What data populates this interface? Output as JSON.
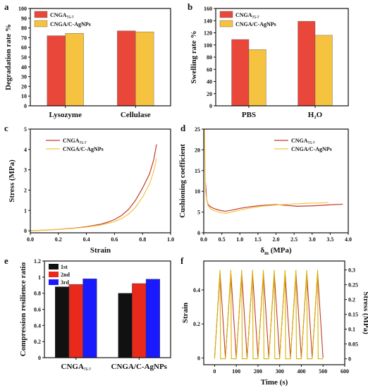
{
  "colors": {
    "red": "#e8473a",
    "yellow": "#f6c340",
    "black": "#111111",
    "blue": "#1a1aff",
    "gold": "#d8b400",
    "maroon": "#c0392b"
  },
  "chart_data": [
    {
      "id": "a",
      "panel_label": "a",
      "type": "bar",
      "ylabel": "Degradation rate %",
      "ylim": [
        0,
        100
      ],
      "yticks": [
        0,
        10,
        20,
        30,
        40,
        50,
        60,
        70,
        80,
        90,
        100
      ],
      "categories": [
        "Lysozyme",
        "Cellulase"
      ],
      "series": [
        {
          "name": "CNGA",
          "sub": "75-7",
          "color": "#e8473a",
          "values": [
            72,
            77
          ]
        },
        {
          "name": "CNGA/C-AgNPs",
          "sub": "",
          "color": "#f6c340",
          "values": [
            74.5,
            76
          ]
        }
      ],
      "legend": "top-left"
    },
    {
      "id": "b",
      "panel_label": "b",
      "type": "bar",
      "ylabel": "Swelling rate %",
      "ylim": [
        0,
        160
      ],
      "yticks": [
        0,
        20,
        40,
        60,
        80,
        100,
        120,
        140,
        160
      ],
      "categories": [
        "PBS",
        "H₂O"
      ],
      "series": [
        {
          "name": "CNGA",
          "sub": "75-7",
          "color": "#e8473a",
          "values": [
            109,
            139
          ]
        },
        {
          "name": "CNGA/C-AgNPs",
          "sub": "",
          "color": "#f6c340",
          "values": [
            92.5,
            116
          ]
        }
      ],
      "legend": "top-left"
    },
    {
      "id": "c",
      "panel_label": "c",
      "type": "line",
      "xlabel": "Strain",
      "ylabel": "Stress (MPa)",
      "xlim": [
        0,
        1.0
      ],
      "ylim": [
        -0.1,
        5
      ],
      "xticks": [
        0.0,
        0.2,
        0.4,
        0.6,
        0.8,
        1.0
      ],
      "yticks": [
        0,
        1,
        2,
        3,
        4,
        5
      ],
      "series": [
        {
          "name": "CNGA",
          "sub": "75-7",
          "color": "#c0392b",
          "x": [
            0,
            0.1,
            0.2,
            0.3,
            0.4,
            0.5,
            0.55,
            0.6,
            0.65,
            0.7,
            0.75,
            0.8,
            0.85,
            0.88,
            0.9
          ],
          "y": [
            0,
            0.03,
            0.07,
            0.12,
            0.2,
            0.32,
            0.42,
            0.55,
            0.75,
            1.05,
            1.5,
            2.1,
            2.8,
            3.5,
            4.25
          ]
        },
        {
          "name": "CNGA/C-AgNPs",
          "sub": "",
          "color": "#f6c340",
          "x": [
            0,
            0.1,
            0.2,
            0.3,
            0.4,
            0.5,
            0.55,
            0.6,
            0.65,
            0.7,
            0.75,
            0.8,
            0.85,
            0.88,
            0.9
          ],
          "y": [
            0,
            0.03,
            0.07,
            0.11,
            0.18,
            0.28,
            0.36,
            0.45,
            0.6,
            0.82,
            1.15,
            1.65,
            2.3,
            2.95,
            3.55
          ]
        }
      ],
      "legend": "top-left"
    },
    {
      "id": "d",
      "panel_label": "d",
      "type": "line",
      "xlabel": "δm (MPa)",
      "ylabel": "Cushioning coefficient",
      "xlim": [
        0,
        4.0
      ],
      "ylim": [
        0,
        25
      ],
      "xticks": [
        0.0,
        0.5,
        1.0,
        1.5,
        2.0,
        2.5,
        3.0,
        3.5,
        4.0
      ],
      "yticks": [
        0,
        5,
        10,
        15,
        20,
        25
      ],
      "series": [
        {
          "name": "CNGA",
          "sub": "75-7",
          "color": "#c0392b",
          "x": [
            0.05,
            0.08,
            0.12,
            0.2,
            0.3,
            0.45,
            0.6,
            0.8,
            1.0,
            1.3,
            1.6,
            2.0,
            2.3,
            2.6,
            3.0,
            3.4,
            3.85
          ],
          "y": [
            12,
            8,
            6.8,
            6.2,
            5.8,
            5.4,
            5.2,
            5.5,
            5.9,
            6.3,
            6.6,
            6.8,
            6.6,
            6.4,
            6.5,
            6.7,
            6.9
          ]
        },
        {
          "name": "CNGA/C-AgNPs",
          "sub": "",
          "color": "#f6c340",
          "x": [
            0.02,
            0.03,
            0.04,
            0.05,
            0.08,
            0.12,
            0.2,
            0.3,
            0.45,
            0.6,
            0.8,
            1.0,
            1.3,
            1.6,
            2.0,
            2.4,
            2.8,
            3.2,
            3.45
          ],
          "y": [
            25,
            20,
            14,
            10,
            8,
            6.5,
            5.7,
            5.3,
            4.9,
            4.7,
            5.0,
            5.5,
            6.0,
            6.4,
            6.7,
            6.9,
            7.1,
            7.2,
            7.3
          ]
        }
      ],
      "legend": "top-right"
    },
    {
      "id": "e",
      "panel_label": "e",
      "type": "bar",
      "ylabel": "Compression resilience ratio",
      "ylim": [
        0,
        1.2
      ],
      "yticks": [
        0.0,
        0.2,
        0.4,
        0.6,
        0.8,
        1.0,
        1.2
      ],
      "categories": [
        {
          "name": "CNGA",
          "sub": "75-7"
        },
        {
          "name": "CNGA/C-AgNPs",
          "sub": ""
        }
      ],
      "series": [
        {
          "name": "1st",
          "color": "#111111",
          "values": [
            0.88,
            0.8
          ]
        },
        {
          "name": "2nd",
          "color": "#e8291c",
          "values": [
            0.91,
            0.92
          ]
        },
        {
          "name": "3rd",
          "color": "#1a1aff",
          "values": [
            0.98,
            0.975
          ]
        }
      ],
      "legend": "top-left"
    },
    {
      "id": "f",
      "panel_label": "f",
      "type": "line",
      "xlabel": "Time (s)",
      "ylabel": "Strain",
      "y2label": "Stress (MPa)",
      "xlim": [
        -50,
        600
      ],
      "ylim": [
        -0.04,
        0.57
      ],
      "y2lim": [
        -0.02,
        0.33
      ],
      "xticks": [
        0,
        100,
        200,
        300,
        400,
        500,
        600
      ],
      "yticks": [
        0.0,
        0.2,
        0.4
      ],
      "y2ticks": [
        0.0,
        0.05,
        0.1,
        0.15,
        0.2,
        0.25,
        0.3
      ],
      "series": [
        {
          "name": "Strain",
          "color": "#c0392b",
          "axis": "left",
          "cycles": 10,
          "t0": 0,
          "period": 50,
          "min": 0.0,
          "max": 0.5
        },
        {
          "name": "Stress (MPa)",
          "color": "#d8b400",
          "axis": "right",
          "cycles": 10,
          "t0": 0,
          "period": 50,
          "min": 0.0,
          "max": 0.3
        }
      ]
    }
  ]
}
